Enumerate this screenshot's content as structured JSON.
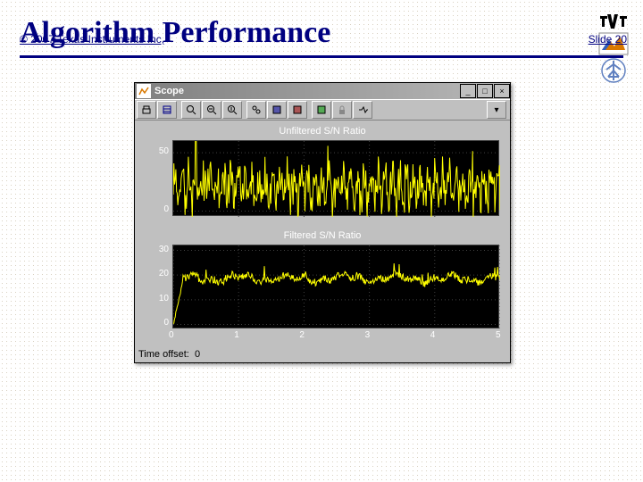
{
  "slide": {
    "title": "Algorithm Performance",
    "copyright": "© 2007 Texas Instruments Inc,",
    "slide_number": "Slide 20"
  },
  "scope": {
    "window_title": "Scope",
    "time_offset_label": "Time offset:",
    "time_offset_value": "0",
    "chart1": {
      "type": "line",
      "title": "Unfiltered S/N Ratio",
      "xlim": [
        0,
        5
      ],
      "ylim": [
        -5,
        60
      ],
      "yticks": [
        0,
        50
      ],
      "xticks": [],
      "line_color": "#ffff00",
      "background_color": "#000000",
      "grid_color": "#404040",
      "tick_label_color": "#ffffff",
      "tick_fontsize": 10,
      "n_points": 500,
      "baseline": 15,
      "noise_amp": 25,
      "noise_freq": 45,
      "seed": 7
    },
    "chart2": {
      "type": "line",
      "title": "Filtered S/N Ratio",
      "xlim": [
        0,
        5
      ],
      "ylim": [
        -2,
        32
      ],
      "yticks": [
        0,
        10,
        20,
        30
      ],
      "xticks": [
        0,
        1,
        2,
        3,
        4,
        5
      ],
      "line_color": "#ffff00",
      "background_color": "#000000",
      "grid_color": "#404040",
      "tick_label_color": "#ffffff",
      "tick_fontsize": 10,
      "n_points": 500,
      "baseline": 18,
      "noise_amp": 3,
      "noise_freq": 6,
      "ramp_end": 0.15,
      "seed": 3
    }
  }
}
